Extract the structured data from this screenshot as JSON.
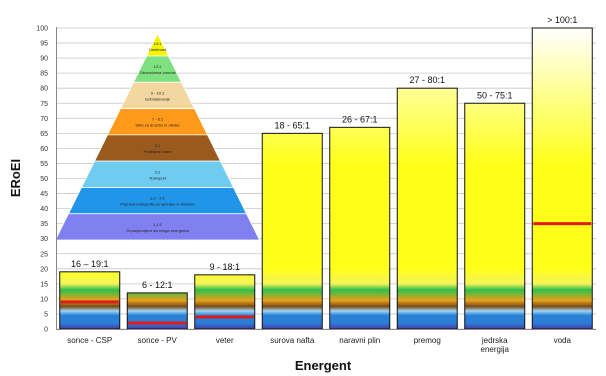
{
  "chart_data": {
    "type": "bar",
    "xlabel": "Energent",
    "ylabel": "ERoEI",
    "ylim": [
      0,
      100
    ],
    "yticks": [
      0,
      5,
      10,
      15,
      20,
      25,
      30,
      35,
      40,
      45,
      50,
      55,
      60,
      65,
      70,
      75,
      80,
      85,
      90,
      95,
      100
    ],
    "grid": true,
    "categories": [
      {
        "label": [
          "sonce - CSP"
        ],
        "value": 19,
        "data_label": "16 – 19:1",
        "marker": 9
      },
      {
        "label": [
          "sonce - PV"
        ],
        "value": 12,
        "data_label": "6 - 12:1",
        "marker": 2
      },
      {
        "label": [
          "veter"
        ],
        "value": 18,
        "data_label": "9 - 18:1",
        "marker": 4
      },
      {
        "label": [
          "surova nafta"
        ],
        "value": 65,
        "data_label": "18 - 65:1",
        "marker": null
      },
      {
        "label": [
          "naravni plin"
        ],
        "value": 67,
        "data_label": "26 - 67:1",
        "marker": null
      },
      {
        "label": [
          "premog"
        ],
        "value": 80,
        "data_label": "27 - 80:1",
        "marker": null
      },
      {
        "label": [
          "jedrska",
          "energija"
        ],
        "value": 75,
        "data_label": "50 - 75:1",
        "marker": null
      },
      {
        "label": [
          "voda"
        ],
        "value": 100,
        "data_label": "> 100:1",
        "marker": 35
      }
    ],
    "pyramid": [
      {
        "ratio": "14:1",
        "label": "Umetnost",
        "color": "#f5f500"
      },
      {
        "ratio": "12:1",
        "label": "Zdravstvena varnost",
        "color": "#7fe07f"
      },
      {
        "ratio": "9 - 10:1",
        "label": "Izobraževanje",
        "color": "#f2d8a0"
      },
      {
        "ratio": "7 - 8:1",
        "label": "Skrb za družino in otroke",
        "color": "#ff9a1a"
      },
      {
        "ratio": "5:1",
        "label": "Pridelava hrane",
        "color": "#9a5a1e"
      },
      {
        "ratio": "3:1",
        "label": "Transport",
        "color": "#6fcbf0"
      },
      {
        "ratio": "1,2 - 2:1",
        "label": "Priprava energenta za uporabo in dostavo",
        "color": "#2196e8"
      },
      {
        "ratio": "1,1:1",
        "label": "Črpanje/zajem surovega energenta",
        "color": "#8080f0"
      }
    ],
    "bar_gradient_stops": [
      "#4b3aa8",
      "#2a7fd6",
      "#9fd4f2",
      "#7a4a18",
      "#e8a21a",
      "#2fbf4a",
      "#f3f35a",
      "#ffff1a",
      "#ffffff"
    ]
  }
}
